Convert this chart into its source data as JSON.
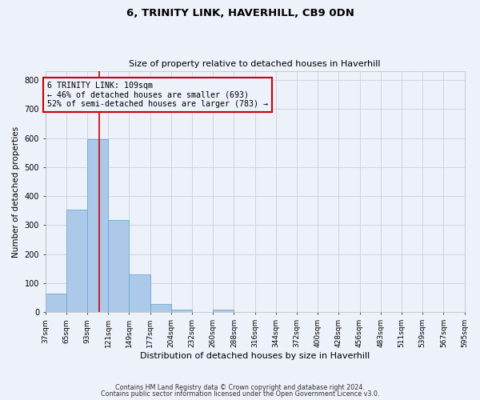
{
  "title": "6, TRINITY LINK, HAVERHILL, CB9 0DN",
  "subtitle": "Size of property relative to detached houses in Haverhill",
  "xlabel": "Distribution of detached houses by size in Haverhill",
  "ylabel": "Number of detached properties",
  "bar_values": [
    65,
    355,
    595,
    318,
    130,
    30,
    10,
    0,
    10,
    0,
    0,
    0,
    0,
    0,
    0,
    0,
    0,
    0,
    0,
    0
  ],
  "bin_labels": [
    "37sqm",
    "65sqm",
    "93sqm",
    "121sqm",
    "149sqm",
    "177sqm",
    "204sqm",
    "232sqm",
    "260sqm",
    "288sqm",
    "316sqm",
    "344sqm",
    "372sqm",
    "400sqm",
    "428sqm",
    "456sqm",
    "483sqm",
    "511sqm",
    "539sqm",
    "567sqm",
    "595sqm"
  ],
  "bar_color": "#adc9e9",
  "bar_edge_color": "#6aaad4",
  "vline_color": "#cc0000",
  "vline_pos": 2.57,
  "ylim": [
    0,
    830
  ],
  "yticks": [
    0,
    100,
    200,
    300,
    400,
    500,
    600,
    700,
    800
  ],
  "annotation_box_text": "6 TRINITY LINK: 109sqm\n← 46% of detached houses are smaller (693)\n52% of semi-detached houses are larger (783) →",
  "annotation_box_color": "#cc0000",
  "grid_color": "#cdd5e3",
  "background_color": "#edf1f9",
  "footer_line1": "Contains HM Land Registry data © Crown copyright and database right 2024.",
  "footer_line2": "Contains public sector information licensed under the Open Government Licence v3.0."
}
